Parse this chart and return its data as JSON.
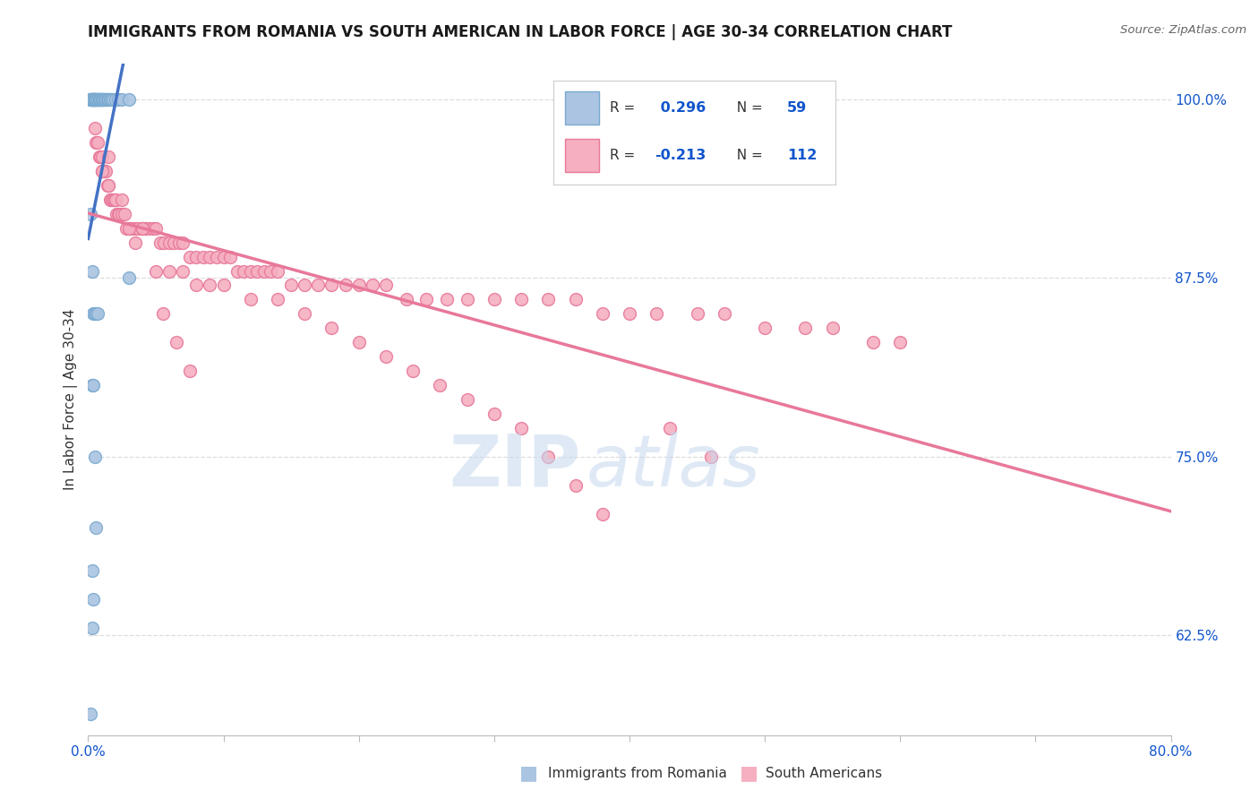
{
  "title": "IMMIGRANTS FROM ROMANIA VS SOUTH AMERICAN IN LABOR FORCE | AGE 30-34 CORRELATION CHART",
  "source": "Source: ZipAtlas.com",
  "ylabel": "In Labor Force | Age 30-34",
  "xlim": [
    0.0,
    0.8
  ],
  "ylim": [
    0.555,
    1.025
  ],
  "yticks": [
    0.625,
    0.75,
    0.875,
    1.0
  ],
  "yticklabels": [
    "62.5%",
    "75.0%",
    "87.5%",
    "100.0%"
  ],
  "xtick_positions": [
    0.0,
    0.1,
    0.2,
    0.3,
    0.4,
    0.5,
    0.6,
    0.7,
    0.8
  ],
  "xticklabels": [
    "0.0%",
    "",
    "",
    "",
    "",
    "",
    "",
    "",
    "80.0%"
  ],
  "romania_color": "#aac4e2",
  "romania_edge": "#7aaad0",
  "south_am_color": "#f5afc0",
  "south_am_edge": "#e8789a",
  "line_romania_color": "#4472c4",
  "line_south_am_color": "#e8789a",
  "R_romania": 0.296,
  "N_romania": 59,
  "R_south_am": -0.213,
  "N_south_am": 112,
  "blue_text": "#1155cc",
  "title_color": "#1a1a1a",
  "source_color": "#666666",
  "ylabel_color": "#333333",
  "grid_color": "#dddddd",
  "background_color": "#ffffff",
  "watermark_zip_color": "#c5d8ef",
  "watermark_atlas_color": "#c5d8ef",
  "romania_x": [
    0.001,
    0.002,
    0.002,
    0.003,
    0.003,
    0.003,
    0.004,
    0.004,
    0.004,
    0.004,
    0.005,
    0.005,
    0.005,
    0.005,
    0.006,
    0.006,
    0.006,
    0.006,
    0.007,
    0.007,
    0.007,
    0.008,
    0.008,
    0.008,
    0.009,
    0.009,
    0.01,
    0.01,
    0.01,
    0.011,
    0.011,
    0.012,
    0.012,
    0.013,
    0.014,
    0.015,
    0.015,
    0.016,
    0.017,
    0.018,
    0.02,
    0.022,
    0.025,
    0.03,
    0.002,
    0.003,
    0.004,
    0.005,
    0.006,
    0.007,
    0.003,
    0.004,
    0.005,
    0.006,
    0.003,
    0.004,
    0.003,
    0.03,
    0.002
  ],
  "romania_y": [
    1.0,
    1.0,
    1.0,
    1.0,
    1.0,
    1.0,
    1.0,
    1.0,
    1.0,
    1.0,
    1.0,
    1.0,
    1.0,
    1.0,
    1.0,
    1.0,
    1.0,
    1.0,
    1.0,
    1.0,
    1.0,
    1.0,
    1.0,
    1.0,
    1.0,
    1.0,
    1.0,
    1.0,
    1.0,
    1.0,
    1.0,
    1.0,
    1.0,
    1.0,
    1.0,
    1.0,
    1.0,
    1.0,
    1.0,
    1.0,
    1.0,
    1.0,
    1.0,
    1.0,
    0.92,
    0.88,
    0.85,
    0.85,
    0.85,
    0.85,
    0.8,
    0.8,
    0.75,
    0.7,
    0.67,
    0.65,
    0.63,
    0.875,
    0.57
  ],
  "south_am_x": [
    0.003,
    0.005,
    0.006,
    0.007,
    0.008,
    0.009,
    0.01,
    0.01,
    0.011,
    0.012,
    0.013,
    0.014,
    0.015,
    0.015,
    0.016,
    0.017,
    0.018,
    0.019,
    0.02,
    0.021,
    0.022,
    0.023,
    0.025,
    0.027,
    0.028,
    0.03,
    0.032,
    0.035,
    0.037,
    0.04,
    0.042,
    0.045,
    0.048,
    0.05,
    0.053,
    0.056,
    0.06,
    0.063,
    0.067,
    0.07,
    0.075,
    0.08,
    0.085,
    0.09,
    0.095,
    0.1,
    0.105,
    0.11,
    0.115,
    0.12,
    0.125,
    0.13,
    0.135,
    0.14,
    0.15,
    0.16,
    0.17,
    0.18,
    0.19,
    0.2,
    0.21,
    0.22,
    0.235,
    0.25,
    0.265,
    0.28,
    0.3,
    0.32,
    0.34,
    0.36,
    0.38,
    0.4,
    0.42,
    0.45,
    0.47,
    0.5,
    0.53,
    0.55,
    0.58,
    0.6,
    0.01,
    0.02,
    0.03,
    0.04,
    0.05,
    0.06,
    0.07,
    0.08,
    0.09,
    0.1,
    0.12,
    0.14,
    0.16,
    0.18,
    0.2,
    0.22,
    0.24,
    0.26,
    0.28,
    0.3,
    0.32,
    0.34,
    0.36,
    0.38,
    0.015,
    0.025,
    0.035,
    0.055,
    0.065,
    0.075,
    0.43,
    0.46
  ],
  "south_am_y": [
    1.0,
    0.98,
    0.97,
    0.97,
    0.96,
    0.96,
    0.96,
    0.95,
    0.95,
    0.95,
    0.95,
    0.94,
    0.94,
    0.94,
    0.93,
    0.93,
    0.93,
    0.93,
    0.93,
    0.92,
    0.92,
    0.92,
    0.92,
    0.92,
    0.91,
    0.91,
    0.91,
    0.91,
    0.91,
    0.91,
    0.91,
    0.91,
    0.91,
    0.91,
    0.9,
    0.9,
    0.9,
    0.9,
    0.9,
    0.9,
    0.89,
    0.89,
    0.89,
    0.89,
    0.89,
    0.89,
    0.89,
    0.88,
    0.88,
    0.88,
    0.88,
    0.88,
    0.88,
    0.88,
    0.87,
    0.87,
    0.87,
    0.87,
    0.87,
    0.87,
    0.87,
    0.87,
    0.86,
    0.86,
    0.86,
    0.86,
    0.86,
    0.86,
    0.86,
    0.86,
    0.85,
    0.85,
    0.85,
    0.85,
    0.85,
    0.84,
    0.84,
    0.84,
    0.83,
    0.83,
    0.95,
    0.93,
    0.91,
    0.91,
    0.88,
    0.88,
    0.88,
    0.87,
    0.87,
    0.87,
    0.86,
    0.86,
    0.85,
    0.84,
    0.83,
    0.82,
    0.81,
    0.8,
    0.79,
    0.78,
    0.77,
    0.75,
    0.73,
    0.71,
    0.96,
    0.93,
    0.9,
    0.85,
    0.83,
    0.81,
    0.77,
    0.75
  ]
}
